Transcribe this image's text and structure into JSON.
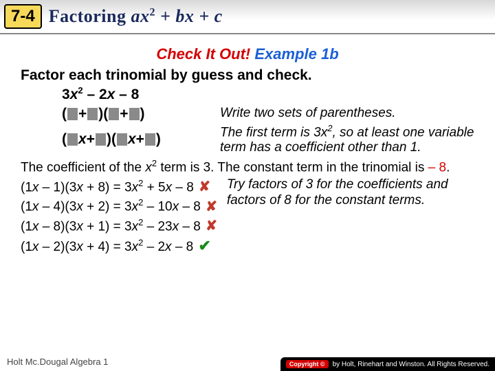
{
  "header": {
    "badge": "7-4",
    "title_prefix": "Factoring ",
    "title_math_a": "ax",
    "title_math_exp": "2",
    "title_math_rest": " + bx + c"
  },
  "check": {
    "red": "Check It Out!",
    "blue": " Example 1b"
  },
  "instruction": "Factor each trinomial by guess and check.",
  "problem_html": "3<span class='var'>x</span><sup class='s2'>2</sup> – 2<span class='var'>x</span> – 8",
  "template1_html": "(<span class='box'></span> + <span class='box'></span>)(<span class='box'></span> + <span class='box'></span>)",
  "note1": "Write two sets of parentheses.",
  "template2_html": "(<span class='box'></span><span class='var'>x</span> + <span class='box'></span>)(<span class='box'></span><span class='var'>x</span> + <span class='box'></span>)",
  "note2_html": "The first term is 3x<sup class='s2'>2</sup>, so at least one variable term has a coefficient other than 1.",
  "para_html": "The coefficient of the <span class='var'>x</span><sup class='s2'>2</sup> term is 3. The constant term in the trinomial is <span class='neg8'>– 8</span>.",
  "trials": [
    "(1<span class='var'>x</span> – 1)(3<span class='var'>x</span> + 8) = 3<span class='var'>x</span><sup class='s2'>2</sup> + 5<span class='var'>x</span> – 8 <span class='xmark'>✘</span>",
    "(1<span class='var'>x</span> – 4)(3<span class='var'>x</span> + 2) = 3<span class='var'>x</span><sup class='s2'>2</sup> – 10<span class='var'>x</span> – 8 <span class='xmark'>✘</span>",
    "(1<span class='var'>x</span> – 8)(3<span class='var'>x</span> + 1) = 3<span class='var'>x</span><sup class='s2'>2</sup> – 23<span class='var'>x</span> – 8 <span class='xmark'>✘</span>",
    "(1<span class='var'>x</span> – 2)(3<span class='var'>x</span> + 4) = 3<span class='var'>x</span><sup class='s2'>2</sup>  – 2<span class='var'>x</span> – 8 <span class='check'>✔</span>"
  ],
  "side_note": "Try factors of 3 for the coefficients and factors of 8 for the constant terms.",
  "footer_left": "Holt Mc.Dougal Algebra 1",
  "footer_badge": "Copyright ©",
  "footer_text": "by Holt, Rinehart and Winston. All Rights Reserved.",
  "colors": {
    "badge_bg": "#f7d95a",
    "title_color": "#1a2a5c",
    "red": "#d40000",
    "blue": "#1a5fd4",
    "box": "#8a8a8a",
    "xmark": "#c0392b",
    "check": "#1a8a1a"
  }
}
